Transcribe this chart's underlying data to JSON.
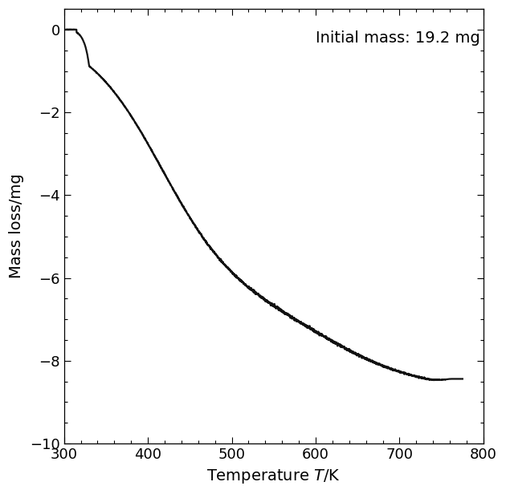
{
  "annotation": "Initial mass: 19.2 mg",
  "xlabel": "Temperature $T$/K",
  "ylabel": "Mass loss/mg",
  "xlim": [
    300,
    800
  ],
  "ylim": [
    -10,
    0.5
  ],
  "xticks": [
    300,
    400,
    500,
    600,
    700,
    800
  ],
  "yticks": [
    0,
    -2,
    -4,
    -6,
    -8,
    -10
  ],
  "line_color": "#111111",
  "line_width": 1.6,
  "background_color": "#ffffff",
  "annotation_fontsize": 14,
  "axis_label_fontsize": 14,
  "tick_fontsize": 13,
  "curve_flat_end": 330,
  "curve_sigmoid1_x0": 415,
  "curve_sigmoid1_k": 0.022,
  "curve_sigmoid1_amp": -6.5,
  "curve_sigmoid2_x0": 620,
  "curve_sigmoid2_k": 0.018,
  "curve_sigmoid2_amp": -2.2,
  "curve_final": -8.7,
  "plateau_start": 730
}
